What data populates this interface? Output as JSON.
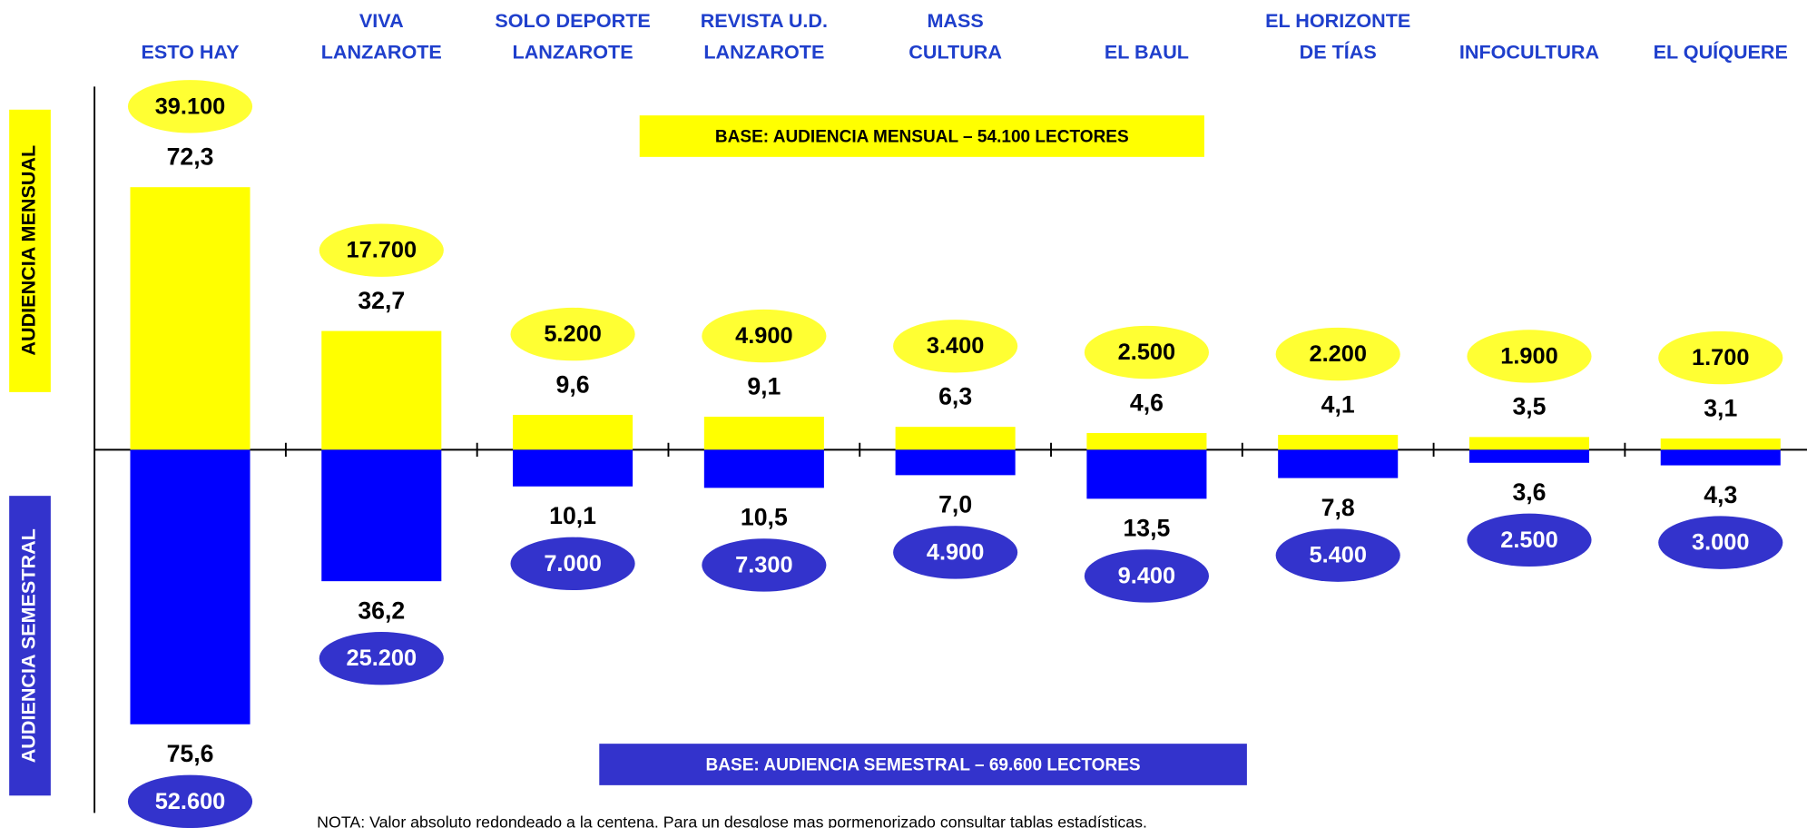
{
  "chart_data": {
    "type": "diverging-bar",
    "categories": [
      [
        "ESTO HAY"
      ],
      [
        "VIVA",
        "LANZAROTE"
      ],
      [
        "SOLO DEPORTE",
        "LANZAROTE"
      ],
      [
        "REVISTA U.D.",
        "LANZAROTE"
      ],
      [
        "MASS",
        "CULTURA"
      ],
      [
        "EL BAUL"
      ],
      [
        "EL HORIZONTE",
        "DE TÍAS"
      ],
      [
        "INFOCULTURA"
      ],
      [
        "EL QUÍQUERE"
      ]
    ],
    "ylim": [
      -80,
      80
    ],
    "series": [
      {
        "name": "AUDIENCIA MENSUAL",
        "color": "#ffff00",
        "label_color": "#ffff33",
        "direction": "up",
        "values": [
          72.3,
          32.7,
          9.6,
          9.1,
          6.3,
          4.6,
          4.1,
          3.5,
          3.1
        ],
        "value_labels": [
          "72,3",
          "32,7",
          "9,6",
          "9,1",
          "6,3",
          "4,6",
          "4,1",
          "3,5",
          "3,1"
        ],
        "counts": [
          39100,
          17700,
          5200,
          4900,
          3400,
          2500,
          2200,
          1900,
          1700
        ],
        "count_labels": [
          "39.100",
          "17.700",
          "5.200",
          "4.900",
          "3.400",
          "2.500",
          "2.200",
          "1.900",
          "1.700"
        ],
        "base": "BASE: AUDIENCIA MENSUAL – 54.100 LECTORES"
      },
      {
        "name": "AUDIENCIA SEMESTRAL",
        "color": "#0000ff",
        "label_color": "#3333cc",
        "direction": "down",
        "values": [
          75.6,
          36.2,
          10.1,
          10.5,
          7.0,
          13.5,
          7.8,
          3.6,
          4.3
        ],
        "value_labels": [
          "75,6",
          "36,2",
          "10,1",
          "10,5",
          "7,0",
          "13,5",
          "7,8",
          "3,6",
          "4,3"
        ],
        "counts": [
          52600,
          25200,
          7000,
          7300,
          4900,
          9400,
          5400,
          2500,
          3000
        ],
        "count_labels": [
          "52.600",
          "25.200",
          "7.000",
          "7.300",
          "4.900",
          "9.400",
          "5.400",
          "2.500",
          "3.000"
        ],
        "base": "BASE: AUDIENCIA SEMESTRAL – 69.600 LECTORES"
      }
    ],
    "note": "NOTA: Valor absoluto redondeado a la centena. Para un desglose mas pormenorizado consultar tablas estadísticas."
  }
}
